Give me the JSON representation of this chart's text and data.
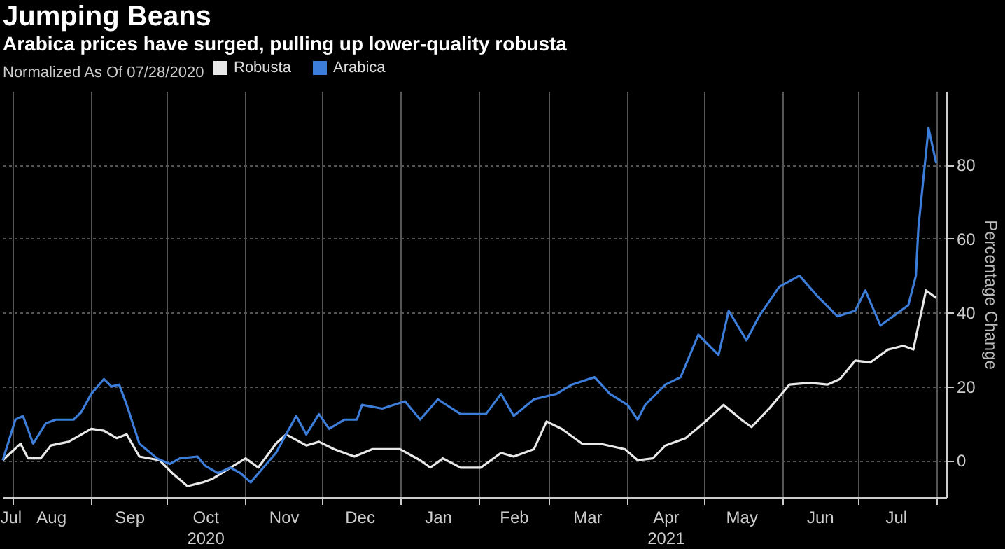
{
  "chart_data": {
    "type": "line",
    "title": "Jumping Beans",
    "subtitle": "Arabica prices have surged, pulling up lower-quality robusta",
    "legend_title": "Normalized As Of 07/28/2020",
    "legend": "top left",
    "ylabel": "Percentage Change",
    "grid": true,
    "line_style": "solid",
    "marker": "none",
    "xlim": [
      "2020-07-28",
      "2021-08-05"
    ],
    "ylim": [
      -10,
      100
    ],
    "yticks": [
      0,
      20,
      40,
      60,
      80
    ],
    "xticks": [
      {
        "value": "2020-07-31",
        "label": "Jul"
      },
      {
        "value": "2020-08-01",
        "label": null
      },
      {
        "value": "2020-08-16",
        "label": "Aug"
      },
      {
        "value": "2020-09-01",
        "label": null
      },
      {
        "value": "2020-09-16",
        "label": "Sep"
      },
      {
        "value": "2020-10-01",
        "label": null
      },
      {
        "value": "2020-10-16",
        "label": "Oct\n2020"
      },
      {
        "value": "2020-11-01",
        "label": null
      },
      {
        "value": "2020-11-16",
        "label": "Nov"
      },
      {
        "value": "2020-12-01",
        "label": null
      },
      {
        "value": "2020-12-16",
        "label": "Dec"
      },
      {
        "value": "2021-01-01",
        "label": null
      },
      {
        "value": "2021-01-16",
        "label": "Jan"
      },
      {
        "value": "2021-02-01",
        "label": null
      },
      {
        "value": "2021-02-15",
        "label": "Feb"
      },
      {
        "value": "2021-03-01",
        "label": null
      },
      {
        "value": "2021-03-16",
        "label": "Mar"
      },
      {
        "value": "2021-04-01",
        "label": null
      },
      {
        "value": "2021-04-16",
        "label": "Apr\n2021"
      },
      {
        "value": "2021-05-01",
        "label": null
      },
      {
        "value": "2021-05-16",
        "label": "May"
      },
      {
        "value": "2021-06-01",
        "label": null
      },
      {
        "value": "2021-06-16",
        "label": "Jun"
      },
      {
        "value": "2021-07-01",
        "label": null
      },
      {
        "value": "2021-07-16",
        "label": "Jul"
      },
      {
        "value": "2021-08-01",
        "label": null
      }
    ],
    "series": [
      {
        "name": "Robusta",
        "color": "#e8e8e8",
        "x": [
          "2020-07-28",
          "2020-08-04",
          "2020-08-07",
          "2020-08-12",
          "2020-08-16",
          "2020-08-23",
          "2020-09-01",
          "2020-09-06",
          "2020-09-11",
          "2020-09-15",
          "2020-09-20",
          "2020-09-28",
          "2020-10-03",
          "2020-10-09",
          "2020-10-15",
          "2020-10-19",
          "2020-10-26",
          "2020-11-01",
          "2020-11-06",
          "2020-11-13",
          "2020-11-17",
          "2020-11-25",
          "2020-11-30",
          "2020-12-06",
          "2020-12-14",
          "2020-12-21",
          "2021-01-01",
          "2021-01-09",
          "2021-01-13",
          "2021-01-18",
          "2021-01-25",
          "2021-02-02",
          "2021-02-10",
          "2021-02-15",
          "2021-02-23",
          "2021-02-28",
          "2021-03-06",
          "2021-03-14",
          "2021-03-21",
          "2021-03-31",
          "2021-04-05",
          "2021-04-11",
          "2021-04-16",
          "2021-04-24",
          "2021-05-01",
          "2021-05-09",
          "2021-05-16",
          "2021-05-20",
          "2021-05-27",
          "2021-06-04",
          "2021-06-12",
          "2021-06-19",
          "2021-06-24",
          "2021-06-30",
          "2021-07-06",
          "2021-07-13",
          "2021-07-19",
          "2021-07-23",
          "2021-07-25",
          "2021-07-28",
          "2021-08-01"
        ],
        "values": [
          0,
          4.5,
          0.5,
          0.5,
          4,
          5,
          8.5,
          8,
          6,
          7,
          1,
          0,
          -3.5,
          -7,
          -6,
          -5,
          -2,
          0.5,
          -2,
          4.5,
          7,
          4,
          5,
          3,
          1,
          3,
          3,
          0,
          -2,
          0.5,
          -2,
          -2,
          2,
          1,
          3,
          10.5,
          8.5,
          4.5,
          4.5,
          3,
          0,
          0.5,
          4,
          6,
          10,
          15,
          11,
          9,
          14,
          20.5,
          21,
          20.5,
          22,
          27,
          26.5,
          30,
          31,
          30,
          36.5,
          46,
          44
        ]
      },
      {
        "name": "Arabica",
        "color": "#3b7dd8",
        "x": [
          "2020-07-28",
          "2020-08-02",
          "2020-08-05",
          "2020-08-09",
          "2020-08-14",
          "2020-08-18",
          "2020-08-25",
          "2020-08-28",
          "2020-09-01",
          "2020-09-06",
          "2020-09-09",
          "2020-09-12",
          "2020-09-15",
          "2020-09-20",
          "2020-09-27",
          "2020-10-02",
          "2020-10-06",
          "2020-10-13",
          "2020-10-16",
          "2020-10-21",
          "2020-10-26",
          "2020-10-30",
          "2020-11-03",
          "2020-11-08",
          "2020-11-13",
          "2020-11-17",
          "2020-11-21",
          "2020-11-25",
          "2020-11-30",
          "2020-12-04",
          "2020-12-10",
          "2020-12-15",
          "2020-12-17",
          "2020-12-25",
          "2021-01-03",
          "2021-01-09",
          "2021-01-16",
          "2021-01-25",
          "2021-02-04",
          "2021-02-10",
          "2021-02-15",
          "2021-02-23",
          "2021-03-04",
          "2021-03-10",
          "2021-03-19",
          "2021-03-25",
          "2021-04-01",
          "2021-04-05",
          "2021-04-08",
          "2021-04-16",
          "2021-04-22",
          "2021-04-29",
          "2021-05-07",
          "2021-05-11",
          "2021-05-18",
          "2021-05-23",
          "2021-05-31",
          "2021-06-08",
          "2021-06-15",
          "2021-06-23",
          "2021-06-30",
          "2021-07-04",
          "2021-07-10",
          "2021-07-15",
          "2021-07-21",
          "2021-07-24",
          "2021-07-25",
          "2021-07-27",
          "2021-07-29",
          "2021-08-01"
        ],
        "values": [
          0,
          11,
          12,
          4.5,
          10,
          11,
          11,
          13,
          18,
          22,
          20,
          20.5,
          15,
          4.5,
          0.5,
          -1,
          0.5,
          1,
          -1.5,
          -3.5,
          -2,
          -3.5,
          -6,
          -2,
          2,
          7,
          12,
          7,
          12.5,
          8.5,
          11,
          11,
          15,
          14,
          16,
          11,
          16.5,
          12.5,
          12.5,
          18,
          12,
          16.5,
          18,
          20.5,
          22.5,
          18,
          15,
          11,
          15,
          20.5,
          22.5,
          34,
          28.5,
          40.5,
          32.5,
          39,
          47,
          50,
          44.5,
          39,
          40.5,
          46,
          36.5,
          39,
          42,
          50,
          63,
          76.5,
          90,
          80.5
        ]
      }
    ]
  }
}
